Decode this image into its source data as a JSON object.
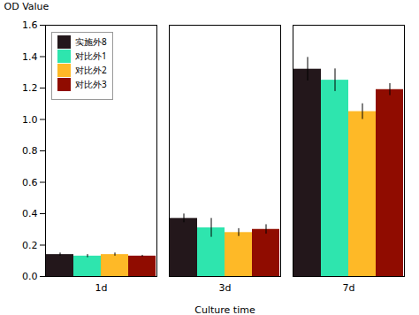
{
  "chart_data": {
    "type": "bar",
    "categories": [
      "1d",
      "3d",
      "7d"
    ],
    "series": [
      {
        "name": "实施外8",
        "values": [
          0.14,
          0.37,
          1.32
        ],
        "errors": [
          0.01,
          0.028,
          0.075
        ]
      },
      {
        "name": "对比外1",
        "values": [
          0.13,
          0.31,
          1.25
        ],
        "errors": [
          0.01,
          0.06,
          0.072
        ]
      },
      {
        "name": "对比外2",
        "values": [
          0.14,
          0.28,
          1.05
        ],
        "errors": [
          0.01,
          0.025,
          0.05
        ]
      },
      {
        "name": "对比外3",
        "values": [
          0.13,
          0.3,
          1.19
        ],
        "errors": [
          0.005,
          0.03,
          0.038
        ]
      }
    ],
    "xlabel": "Culture time",
    "ylabel": "OD Value",
    "ylim": [
      0.0,
      1.6
    ],
    "yticks": [
      {
        "value": 0.0,
        "label": "0.0"
      },
      0.2,
      0.4,
      0.6,
      0.8,
      {
        "value": 1.0,
        "label": "1.0"
      },
      1.2,
      1.4,
      1.6
    ],
    "grid": false,
    "legend": "upper left"
  }
}
